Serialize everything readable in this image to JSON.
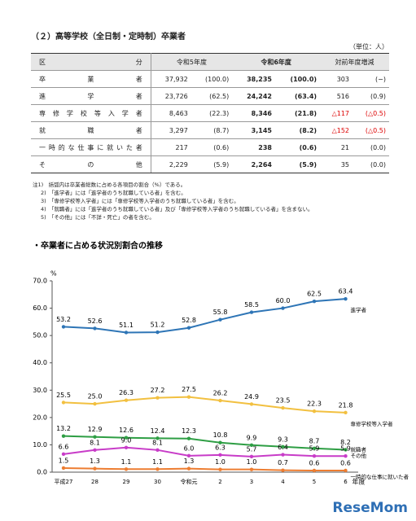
{
  "heading": "（２）高等学校（全日制・定時制）卒業者",
  "unit": "（単位：人）",
  "table": {
    "header": [
      "区分",
      "令和5年度",
      "令和6年度",
      "対前年度増減"
    ],
    "rows": [
      [
        "卒業者",
        "37,932",
        "(100.0)",
        "38,235",
        "(100.0)",
        "303",
        "(−)"
      ],
      [
        "進学者",
        "23,726",
        "(62.5)",
        "24,242",
        "(63.4)",
        "516",
        "(0.9)"
      ],
      [
        "専修学校等入学者",
        "8,463",
        "(22.3)",
        "8,346",
        "(21.8)",
        "△117",
        "(△0.5)"
      ],
      [
        "就職者",
        "3,297",
        "(8.7)",
        "3,145",
        "(8.2)",
        "△152",
        "(△0.5)"
      ],
      [
        "一時的な仕事に就いた者",
        "217",
        "(0.6)",
        "238",
        "(0.6)",
        "21",
        "(0.0)"
      ],
      [
        "その他",
        "2,229",
        "(5.9)",
        "2,264",
        "(5.9)",
        "35",
        "(0.0)"
      ]
    ]
  },
  "notes": [
    "注1)　括弧内は卒業者総数に占める各項目の割合（%）である。",
    "2)　「進学者」には「進学者のうち就職している者」を含む。",
    "3)　「専修学校等入学者」には「専修学校等入学者のうち就職している者」を含む。",
    "4)　「就職者」には「進学者のうち就職している者」及び「専修学校等入学者のうち就職している者」を含まない。",
    "5)　「その他」には「不詳・死亡」の者を含む。"
  ],
  "chart_data": {
    "type": "line",
    "title": "・卒業者に占める状況別割合の推移",
    "y_label": "%",
    "x_label": "年度",
    "categories": [
      "平成27",
      "28",
      "29",
      "30",
      "令和元",
      "2",
      "3",
      "4",
      "5",
      "6"
    ],
    "ylim": [
      0,
      70
    ],
    "yticks": [
      {
        "value": 0,
        "label": "0.0"
      },
      {
        "value": 10,
        "label": "10.0"
      },
      {
        "value": 20,
        "label": "20.0"
      },
      {
        "value": 30,
        "label": "30.0"
      },
      {
        "value": 40,
        "label": "40.0"
      },
      {
        "value": 50,
        "label": "50.0"
      },
      {
        "value": 60,
        "label": "60.0"
      },
      {
        "value": 70,
        "label": "70.0"
      }
    ],
    "grid": false,
    "series": [
      {
        "name": "進学者",
        "color": "#2e75b6",
        "values": [
          53.2,
          52.6,
          51.1,
          51.2,
          52.8,
          55.8,
          58.5,
          60.0,
          62.5,
          63.4
        ],
        "value_labels": [
          "53.2",
          "52.6",
          "51.1",
          "51.2",
          "52.8",
          "55.8",
          "58.5",
          "60.0",
          "62.5",
          "63.4"
        ]
      },
      {
        "name": "専修学校等入学者",
        "color": "#f2c040",
        "values": [
          25.5,
          25.0,
          26.3,
          27.2,
          27.5,
          26.2,
          24.9,
          23.5,
          22.3,
          21.8
        ],
        "value_labels": [
          "25.5",
          "25.0",
          "26.3",
          "27.2",
          "27.5",
          "26.2",
          "24.9",
          "23.5",
          "22.3",
          "21.8"
        ]
      },
      {
        "name": "就職者",
        "color": "#2e9e44",
        "values": [
          13.2,
          12.9,
          12.6,
          12.4,
          12.3,
          10.8,
          9.9,
          9.3,
          8.7,
          8.2
        ],
        "value_labels": [
          "13.2",
          "12.9",
          "12.6",
          "12.4",
          "12.3",
          "10.8",
          "9.9",
          "9.3",
          "8.7",
          "8.2"
        ]
      },
      {
        "name": "その他",
        "color": "#c83cc8",
        "values": [
          6.6,
          8.1,
          9.0,
          8.1,
          6.0,
          6.3,
          5.7,
          6.4,
          5.9,
          5.9
        ],
        "value_labels": [
          "6.6",
          "8.1",
          "9.0",
          "8.1",
          "6.0",
          "6.3",
          "5.7",
          "6.4",
          "5.9",
          "5.9"
        ]
      },
      {
        "name": "一時的な仕事に就いた者",
        "color": "#ed7d31",
        "values": [
          1.5,
          1.3,
          1.1,
          1.1,
          1.3,
          1.0,
          1.0,
          0.7,
          0.6,
          0.6
        ],
        "value_labels": [
          "1.5",
          "1.3",
          "1.1",
          "1.1",
          "1.3",
          "1.0",
          "1.0",
          "0.7",
          "0.6",
          "0.6"
        ]
      }
    ]
  },
  "watermark": "ReseMom"
}
